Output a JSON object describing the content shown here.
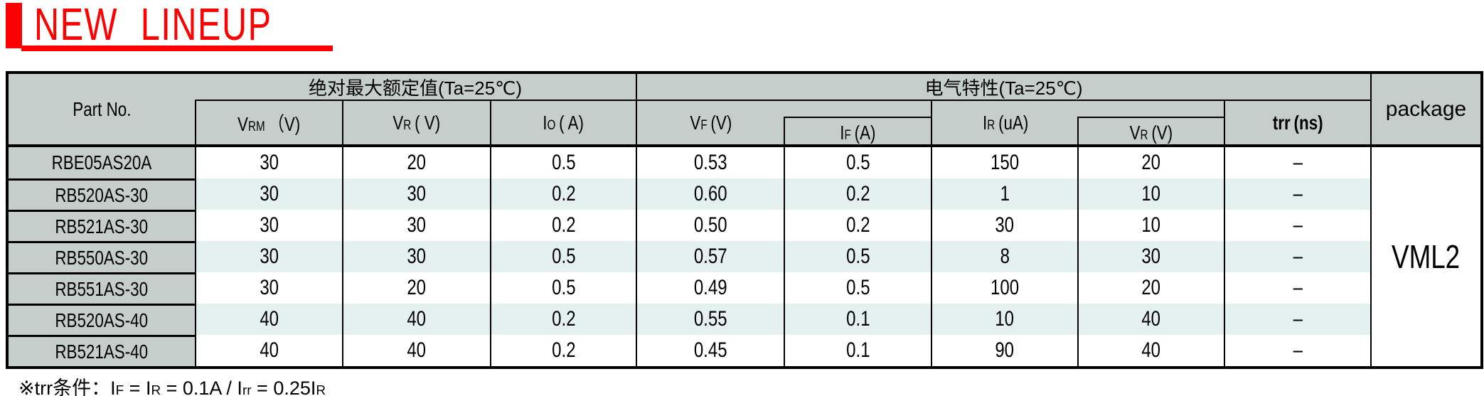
{
  "banner": {
    "title": "NEW LINEUP"
  },
  "colors": {
    "accent_red": "#fe0000",
    "header_gray": "#c6cecb",
    "alt_row": "#e4f1ee",
    "grid_line": "#000000"
  },
  "table": {
    "part_col_header": "Part No.",
    "groups": {
      "abs_max": "绝对最大额定值(Ta=25℃)",
      "elec": "电气特性(Ta=25℃)"
    },
    "columns": {
      "vrm": {
        "base": "V",
        "sub": "RM",
        "unit": "（V)"
      },
      "vr": {
        "base": "V",
        "sub": "R",
        "unit": "( V)"
      },
      "io": {
        "base": "I",
        "sub": "O",
        "unit": "( A)"
      },
      "vf": {
        "base": "V",
        "sub": "F",
        "unit": "(V)"
      },
      "if": {
        "base": "I",
        "sub": "F",
        "unit": "(A)"
      },
      "ir": {
        "base": "I",
        "sub": "R",
        "unit": "(uA)"
      },
      "vr2": {
        "base": "V",
        "sub": "R",
        "unit": "(V)"
      },
      "trr": {
        "base": "trr",
        "sub": "",
        "unit": "(ns)"
      }
    },
    "package_header": "package",
    "package_value": "VML2",
    "rows": [
      {
        "part": "RBE05AS20A",
        "vrm": "30",
        "vr": "20",
        "io": "0.5",
        "vf": "0.53",
        "if": "0.5",
        "ir": "150",
        "vr2": "20",
        "trr": "–"
      },
      {
        "part": "RB520AS-30",
        "vrm": "30",
        "vr": "30",
        "io": "0.2",
        "vf": "0.60",
        "if": "0.2",
        "ir": "1",
        "vr2": "10",
        "trr": "–"
      },
      {
        "part": "RB521AS-30",
        "vrm": "30",
        "vr": "30",
        "io": "0.2",
        "vf": "0.50",
        "if": "0.2",
        "ir": "30",
        "vr2": "10",
        "trr": "–"
      },
      {
        "part": "RB550AS-30",
        "vrm": "30",
        "vr": "30",
        "io": "0.5",
        "vf": "0.57",
        "if": "0.5",
        "ir": "8",
        "vr2": "30",
        "trr": "–"
      },
      {
        "part": "RB551AS-30",
        "vrm": "30",
        "vr": "20",
        "io": "0.5",
        "vf": "0.49",
        "if": "0.5",
        "ir": "100",
        "vr2": "20",
        "trr": "–"
      },
      {
        "part": "RB520AS-40",
        "vrm": "40",
        "vr": "40",
        "io": "0.2",
        "vf": "0.55",
        "if": "0.1",
        "ir": "10",
        "vr2": "40",
        "trr": "–"
      },
      {
        "part": "RB521AS-40",
        "vrm": "40",
        "vr": "40",
        "io": "0.2",
        "vf": "0.45",
        "if": "0.1",
        "ir": "90",
        "vr2": "40",
        "trr": "–"
      }
    ]
  },
  "footnote": {
    "prefix": "※trr条件：",
    "formula": [
      {
        "base": "I",
        "sub": "F"
      },
      {
        "base": " = I",
        "sub": "R"
      },
      {
        "base": " = 0.1A / I",
        "sub": "rr"
      },
      {
        "base": " = 0.25I",
        "sub": "R"
      }
    ]
  }
}
